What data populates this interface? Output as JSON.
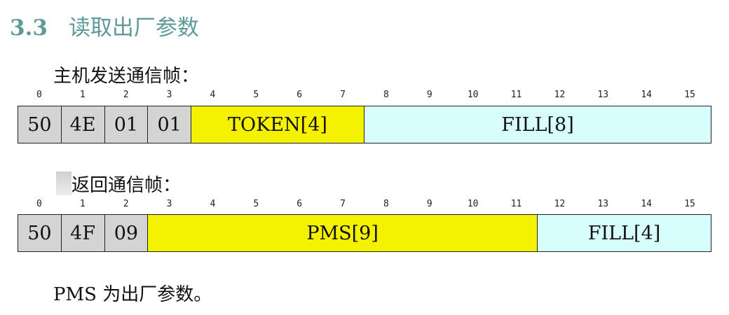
{
  "heading": {
    "number": "3.3",
    "title": "读取出厂参数"
  },
  "host_frame": {
    "label": "主机发送通信帧：",
    "indices": [
      "0",
      "1",
      "2",
      "3",
      "4",
      "5",
      "6",
      "7",
      "8",
      "9",
      "10",
      "11",
      "12",
      "13",
      "14",
      "15"
    ],
    "cells": [
      {
        "text": "50",
        "span": 1,
        "color": "gray"
      },
      {
        "text": "4E",
        "span": 1,
        "color": "gray"
      },
      {
        "text": "01",
        "span": 1,
        "color": "gray"
      },
      {
        "text": "01",
        "span": 1,
        "color": "gray"
      },
      {
        "text": "TOKEN[4]",
        "span": 4,
        "color": "yellow"
      },
      {
        "text": "FILL[8]",
        "span": 8,
        "color": "cyan"
      }
    ]
  },
  "return_frame": {
    "label": "返回通信帧：",
    "indices": [
      "0",
      "1",
      "2",
      "3",
      "4",
      "5",
      "6",
      "7",
      "8",
      "9",
      "10",
      "11",
      "12",
      "13",
      "14",
      "15"
    ],
    "cells": [
      {
        "text": "50",
        "span": 1,
        "color": "gray"
      },
      {
        "text": "4F",
        "span": 1,
        "color": "gray"
      },
      {
        "text": "09",
        "span": 1,
        "color": "gray"
      },
      {
        "text": "PMS[9]",
        "span": 9,
        "color": "yellow"
      },
      {
        "text": "FILL[4]",
        "span": 4,
        "color": "cyan"
      }
    ]
  },
  "note": "PMS 为出厂参数。",
  "colors": {
    "gray": "#d4d4d4",
    "yellow": "#f4f200",
    "cyan": "#d8fdfd",
    "heading": "#5e9a9a"
  }
}
